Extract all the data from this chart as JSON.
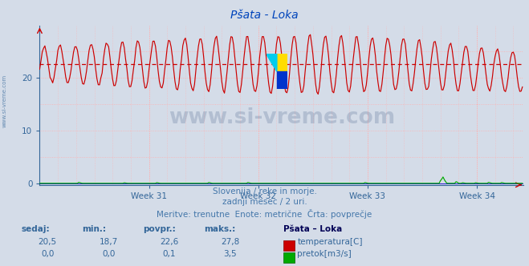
{
  "title": "Pšata - Loka",
  "bg_color": "#d4dce8",
  "plot_bg_color": "#d4dce8",
  "grid_h_color": "#ffb0b0",
  "grid_v_color": "#ffb0b0",
  "xlim": [
    0,
    372
  ],
  "ylim": [
    -0.3,
    30
  ],
  "yticks": [
    0,
    5,
    10,
    15,
    20,
    25
  ],
  "ytick_labels": [
    "",
    "",
    "10",
    "",
    "20",
    ""
  ],
  "week_ticks": [
    84,
    168,
    252,
    336
  ],
  "week_labels": [
    "Week 31",
    "Week 32",
    "Week 33",
    "Week 34"
  ],
  "avg_temp": 22.6,
  "temp_color": "#cc0000",
  "flow_color": "#00aa00",
  "height_color": "#0000cc",
  "avg_line_color": "#cc0000",
  "watermark_text": "www.si-vreme.com",
  "watermark_color": "#1a3a6b",
  "watermark_alpha": 0.18,
  "subtitle1": "Slovenija / reke in morje.",
  "subtitle2": "zadnji mesec / 2 uri.",
  "subtitle3": "Meritve: trenutne  Enote: metrične  Črta: povprečje",
  "subtitle_color": "#4477aa",
  "table_headers": [
    "sedaj:",
    "min.:",
    "povpr.:",
    "maks.:"
  ],
  "table_row1": [
    "20,5",
    "18,7",
    "22,6",
    "27,8"
  ],
  "table_row2": [
    "0,0",
    "0,0",
    "0,1",
    "3,5"
  ],
  "station_label": "Pšata – Loka",
  "legend_temp": "temperatura[C]",
  "legend_flow": "pretok[m3/s]",
  "table_color": "#336699",
  "left_label": "www.si-vreme.com",
  "num_points": 372
}
